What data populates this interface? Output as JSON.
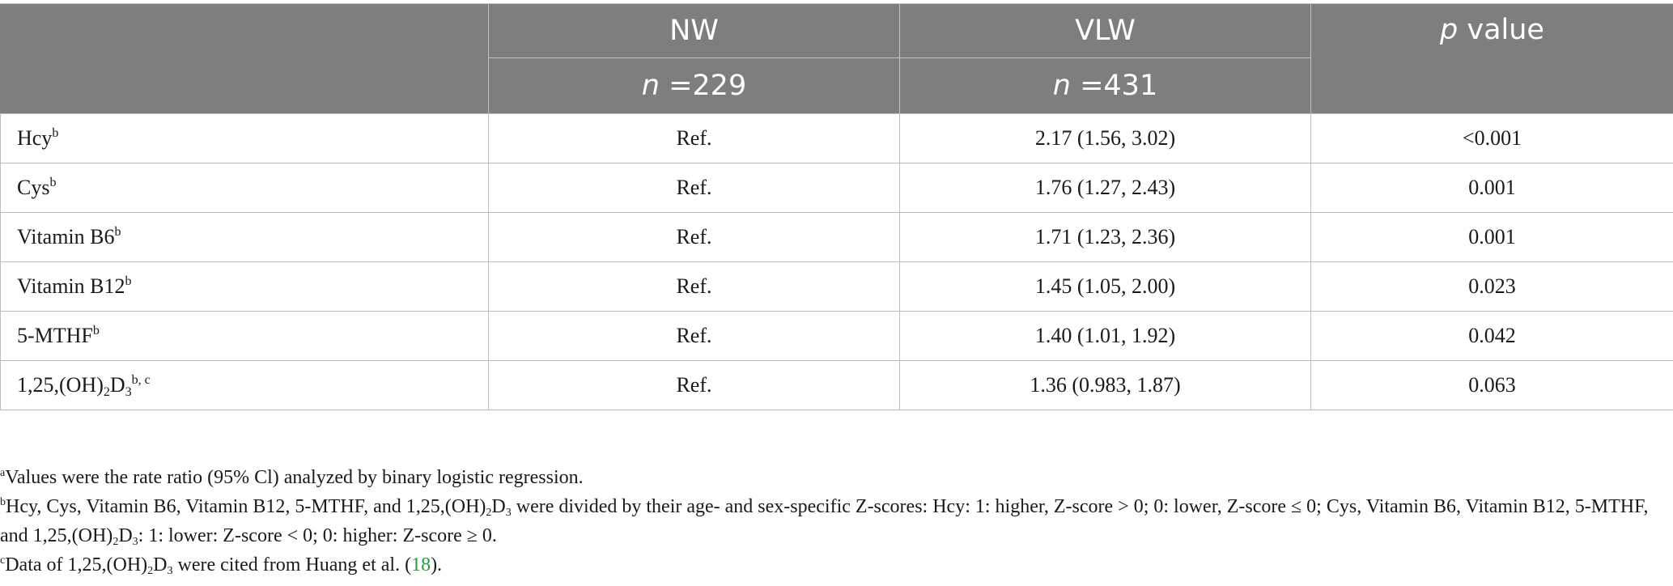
{
  "header": {
    "col_nw": "NW",
    "col_vlw": "VLW",
    "p_italic": "p",
    "p_rest": " value",
    "n_italic": "n",
    "nw_n_value": " =229",
    "vlw_n_value": " =431"
  },
  "rows": [
    {
      "label": "Hcy",
      "sup": "b",
      "nw": "Ref.",
      "vlw": "2.17 (1.56, 3.02)",
      "p": "<0.001"
    },
    {
      "label": "Cys",
      "sup": "b",
      "nw": "Ref.",
      "vlw": "1.76 (1.27, 2.43)",
      "p": "0.001"
    },
    {
      "label": "Vitamin B6",
      "sup": "b",
      "nw": "Ref.",
      "vlw": "1.71 (1.23, 2.36)",
      "p": "0.001"
    },
    {
      "label": "Vitamin B12",
      "sup": "b",
      "nw": "Ref.",
      "vlw": "1.45 (1.05, 2.00)",
      "p": "0.023"
    },
    {
      "label": "5-MTHF",
      "sup": "b",
      "nw": "Ref.",
      "vlw": "1.40 (1.01, 1.92)",
      "p": "0.042"
    },
    {
      "label_a": "1,25,(OH)",
      "label_sub1": "2",
      "label_b": "D",
      "label_sub2": "3",
      "sup": "b, c",
      "nw": "Ref.",
      "vlw": "1.36 (0.983, 1.87)",
      "p": "0.063"
    }
  ],
  "notes": {
    "a": {
      "mark": "a",
      "text": "Values were the rate ratio (95% Cl) analyzed by binary logistic regression."
    },
    "b": {
      "mark": "b",
      "t1": "Hcy, Cys, Vitamin B6, Vitamin B12, 5-MTHF, and 1,25,(OH)",
      "s1": "2",
      "t2": "D",
      "s2": "3",
      "t3": " were divided by their age- and sex-specific Z-scores: Hcy: 1: higher, Z-score > 0; 0: lower, Z-score ≤ 0; Cys, Vitamin B6, Vitamin B12, 5-MTHF, and 1,25,(OH)",
      "s3": "2",
      "t4": "D",
      "s4": "3",
      "t5": ": 1: lower: Z-score < 0; 0: higher: Z-score ≥ 0."
    },
    "c": {
      "mark": "c",
      "t1": "Data of 1,25,(OH)",
      "s1": "2",
      "t2": "D",
      "s2": "3",
      "t3": " were cited from Huang et al. (",
      "cite": "18",
      "t4": ")."
    }
  },
  "colors": {
    "header_bg": "#7d7e7d",
    "header_text": "#ffffff",
    "grid": "#bdbdbd",
    "citation_link": "#2b9a3f"
  }
}
